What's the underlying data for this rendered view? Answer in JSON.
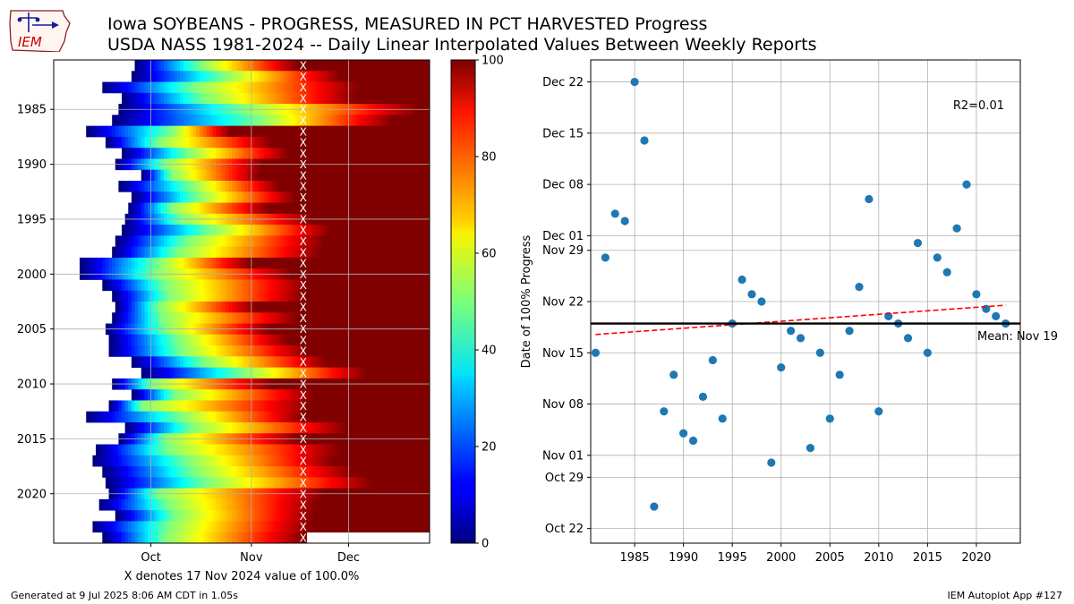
{
  "header": {
    "title_line1": "Iowa SOYBEANS - PROGRESS, MEASURED IN PCT HARVESTED Progress",
    "title_line2": "USDA NASS 1981-2024 -- Daily Linear Interpolated Values Between Weekly Reports",
    "logo_text": "IEM"
  },
  "footer": {
    "left": "Generated at 9 Jul 2025 8:06 AM CDT in 1.05s",
    "right": "IEM Autoplot App #127"
  },
  "colors": {
    "scatter_point": "#1f77b4",
    "trend_line": "#ff0000",
    "mean_line": "#000000",
    "grid": "#b0b0b0",
    "logo_text": "#cc0000",
    "logo_outline": "#8b2020",
    "logo_mark": "#1a1a99"
  },
  "chart_data": [
    {
      "type": "heatmap",
      "name": "Daily harvest progress by year",
      "xlabel": "X denotes 17 Nov 2024 value of 100.0%",
      "xtick_labels": [
        "Oct",
        "Nov",
        "Dec"
      ],
      "xtick_dates": [
        "Oct 1",
        "Nov 1",
        "Dec 1"
      ],
      "ytick_labels": [
        "1985",
        "1990",
        "1995",
        "2000",
        "2005",
        "2010",
        "2015",
        "2020"
      ],
      "ytick_years": [
        1985,
        1990,
        1995,
        2000,
        2005,
        2010,
        2015,
        2020
      ],
      "y_axis_inverted": true,
      "day_range": [
        "Sep 1",
        "Dec 26"
      ],
      "marker_text": "X",
      "marker_description": "X marks the day of year matching 17 Nov 2024 (100.0%)",
      "current_year_end": "Nov 17",
      "colorbar": {
        "colormap": "jet",
        "range": [
          0,
          100
        ],
        "tick_labels": [
          "0",
          "20",
          "40",
          "60",
          "80",
          "100"
        ]
      },
      "rows": [
        {
          "year": 1981,
          "start": "Sep 26",
          "p50": "Oct 16",
          "marker": "Nov 15"
        },
        {
          "year": 1982,
          "start": "Sep 25",
          "p50": "Oct 23",
          "marker": "Nov 28"
        },
        {
          "year": 1983,
          "start": "Sep 16",
          "p50": "Oct 14",
          "marker": "Dec 4"
        },
        {
          "year": 1984,
          "start": "Sep 22",
          "p50": "Oct 17",
          "marker": "Dec 3"
        },
        {
          "year": 1985,
          "start": "Sep 21",
          "p50": "Oct 29",
          "marker": "Dec 22"
        },
        {
          "year": 1986,
          "start": "Sep 19",
          "p50": "Nov 3",
          "marker": "Dec 14"
        },
        {
          "year": 1987,
          "start": "Sep 11",
          "p50": "Oct 7",
          "marker": "Oct 25"
        },
        {
          "year": 1988,
          "start": "Sep 17",
          "p50": "Oct 3",
          "marker": "Nov 7"
        },
        {
          "year": 1989,
          "start": "Sep 22",
          "p50": "Oct 12",
          "marker": "Nov 12"
        },
        {
          "year": 1990,
          "start": "Sep 20",
          "p50": "Oct 5",
          "marker": "Nov 4"
        },
        {
          "year": 1991,
          "start": "Sep 28",
          "p50": "Oct 7",
          "marker": "Nov 3"
        },
        {
          "year": 1992,
          "start": "Sep 21",
          "p50": "Oct 13",
          "marker": "Nov 9"
        },
        {
          "year": 1993,
          "start": "Sep 25",
          "p50": "Oct 15",
          "marker": "Nov 14"
        },
        {
          "year": 1994,
          "start": "Sep 24",
          "p50": "Oct 7",
          "marker": "Nov 6"
        },
        {
          "year": 1995,
          "start": "Sep 23",
          "p50": "Oct 10",
          "marker": "Nov 19"
        },
        {
          "year": 1996,
          "start": "Sep 22",
          "p50": "Oct 19",
          "marker": "Nov 25"
        },
        {
          "year": 1997,
          "start": "Sep 20",
          "p50": "Oct 12",
          "marker": "Nov 23"
        },
        {
          "year": 1998,
          "start": "Sep 19",
          "p50": "Oct 9",
          "marker": "Nov 22"
        },
        {
          "year": 1999,
          "start": "Sep 9",
          "p50": "Oct 3",
          "marker": "Oct 31"
        },
        {
          "year": 2000,
          "start": "Sep 9",
          "p50": "Oct 2",
          "marker": "Nov 13"
        },
        {
          "year": 2001,
          "start": "Sep 16",
          "p50": "Oct 5",
          "marker": "Nov 18"
        },
        {
          "year": 2002,
          "start": "Sep 19",
          "p50": "Oct 6",
          "marker": "Nov 17"
        },
        {
          "year": 2003,
          "start": "Sep 20",
          "p50": "Oct 3",
          "marker": "Nov 2"
        },
        {
          "year": 2004,
          "start": "Sep 19",
          "p50": "Oct 4",
          "marker": "Nov 15"
        },
        {
          "year": 2005,
          "start": "Sep 17",
          "p50": "Oct 5",
          "marker": "Nov 6"
        },
        {
          "year": 2006,
          "start": "Sep 18",
          "p50": "Oct 9",
          "marker": "Nov 12"
        },
        {
          "year": 2007,
          "start": "Sep 18",
          "p50": "Oct 10",
          "marker": "Nov 18"
        },
        {
          "year": 2008,
          "start": "Sep 25",
          "p50": "Oct 17",
          "marker": "Nov 24"
        },
        {
          "year": 2009,
          "start": "Sep 28",
          "p50": "Oct 29",
          "marker": "Dec 6"
        },
        {
          "year": 2010,
          "start": "Sep 19",
          "p50": "Oct 1",
          "marker": "Nov 7"
        },
        {
          "year": 2011,
          "start": "Sep 25",
          "p50": "Oct 8",
          "marker": "Nov 20"
        },
        {
          "year": 2012,
          "start": "Sep 18",
          "p50": "Sep 28",
          "marker": "Nov 19"
        },
        {
          "year": 2013,
          "start": "Sep 11",
          "p50": "Oct 10",
          "marker": "Nov 17"
        },
        {
          "year": 2014,
          "start": "Sep 23",
          "p50": "Oct 13",
          "marker": "Nov 30"
        },
        {
          "year": 2015,
          "start": "Sep 21",
          "p50": "Oct 5",
          "marker": "Nov 15"
        },
        {
          "year": 2016,
          "start": "Sep 14",
          "p50": "Oct 6",
          "marker": "Nov 28"
        },
        {
          "year": 2017,
          "start": "Sep 13",
          "p50": "Oct 12",
          "marker": "Nov 26"
        },
        {
          "year": 2018,
          "start": "Sep 16",
          "p50": "Oct 14",
          "marker": "Dec 2"
        },
        {
          "year": 2019,
          "start": "Sep 17",
          "p50": "Oct 18",
          "marker": "Dec 8"
        },
        {
          "year": 2020,
          "start": "Sep 18",
          "p50": "Oct 3",
          "marker": "Nov 23"
        },
        {
          "year": 2021,
          "start": "Sep 15",
          "p50": "Oct 6",
          "marker": "Nov 21"
        },
        {
          "year": 2022,
          "start": "Sep 20",
          "p50": "Oct 8",
          "marker": "Nov 20"
        },
        {
          "year": 2023,
          "start": "Sep 13",
          "p50": "Oct 6",
          "marker": "Nov 19"
        },
        {
          "year": 2024,
          "start": "Sep 16",
          "p50": "Oct 5",
          "marker": "Nov 17"
        }
      ]
    },
    {
      "type": "scatter",
      "name": "Date of 100% Progress by year",
      "ylabel": "Date of 100% Progress",
      "xlabel": "",
      "xlim": [
        1980.5,
        2024.5
      ],
      "ylim_dates": [
        "Oct 20",
        "Dec 25"
      ],
      "xtick_labels": [
        "1985",
        "1990",
        "1995",
        "2000",
        "2005",
        "2010",
        "2015",
        "2020"
      ],
      "xtick_values": [
        1985,
        1990,
        1995,
        2000,
        2005,
        2010,
        2015,
        2020
      ],
      "ytick_labels": [
        "Oct 22",
        "Oct 29",
        "Nov 01",
        "Nov 08",
        "Nov 15",
        "Nov 22",
        "Nov 29",
        "Dec 01",
        "Dec 08",
        "Dec 15",
        "Dec 22"
      ],
      "ytick_dates": [
        "Oct 22",
        "Oct 29",
        "Nov 1",
        "Nov 8",
        "Nov 15",
        "Nov 22",
        "Nov 29",
        "Dec 1",
        "Dec 8",
        "Dec 15",
        "Dec 22"
      ],
      "points": [
        {
          "year": 1981,
          "date": "Nov 15"
        },
        {
          "year": 1982,
          "date": "Nov 28"
        },
        {
          "year": 1983,
          "date": "Dec 4"
        },
        {
          "year": 1984,
          "date": "Dec 3"
        },
        {
          "year": 1985,
          "date": "Dec 22"
        },
        {
          "year": 1986,
          "date": "Dec 14"
        },
        {
          "year": 1987,
          "date": "Oct 25"
        },
        {
          "year": 1988,
          "date": "Nov 7"
        },
        {
          "year": 1989,
          "date": "Nov 12"
        },
        {
          "year": 1990,
          "date": "Nov 4"
        },
        {
          "year": 1991,
          "date": "Nov 3"
        },
        {
          "year": 1992,
          "date": "Nov 9"
        },
        {
          "year": 1993,
          "date": "Nov 14"
        },
        {
          "year": 1994,
          "date": "Nov 6"
        },
        {
          "year": 1995,
          "date": "Nov 19"
        },
        {
          "year": 1996,
          "date": "Nov 25"
        },
        {
          "year": 1997,
          "date": "Nov 23"
        },
        {
          "year": 1998,
          "date": "Nov 22"
        },
        {
          "year": 1999,
          "date": "Oct 31"
        },
        {
          "year": 2000,
          "date": "Nov 13"
        },
        {
          "year": 2001,
          "date": "Nov 18"
        },
        {
          "year": 2002,
          "date": "Nov 17"
        },
        {
          "year": 2003,
          "date": "Nov 2"
        },
        {
          "year": 2004,
          "date": "Nov 15"
        },
        {
          "year": 2005,
          "date": "Nov 6"
        },
        {
          "year": 2006,
          "date": "Nov 12"
        },
        {
          "year": 2007,
          "date": "Nov 18"
        },
        {
          "year": 2008,
          "date": "Nov 24"
        },
        {
          "year": 2009,
          "date": "Dec 6"
        },
        {
          "year": 2010,
          "date": "Nov 7"
        },
        {
          "year": 2011,
          "date": "Nov 20"
        },
        {
          "year": 2012,
          "date": "Nov 19"
        },
        {
          "year": 2013,
          "date": "Nov 17"
        },
        {
          "year": 2014,
          "date": "Nov 30"
        },
        {
          "year": 2015,
          "date": "Nov 15"
        },
        {
          "year": 2016,
          "date": "Nov 28"
        },
        {
          "year": 2017,
          "date": "Nov 26"
        },
        {
          "year": 2018,
          "date": "Dec 2"
        },
        {
          "year": 2019,
          "date": "Dec 8"
        },
        {
          "year": 2020,
          "date": "Nov 23"
        },
        {
          "year": 2021,
          "date": "Nov 21"
        },
        {
          "year": 2022,
          "date": "Nov 20"
        },
        {
          "year": 2023,
          "date": "Nov 19"
        }
      ],
      "trend": {
        "style": "dashed",
        "from_year": 1981,
        "from_date": "Nov 17.5",
        "to_year": 2023,
        "to_date": "Nov 21.5"
      },
      "r2_label": "R2=0.01",
      "mean": {
        "date": "Nov 19",
        "label": "Mean: Nov 19"
      }
    }
  ]
}
